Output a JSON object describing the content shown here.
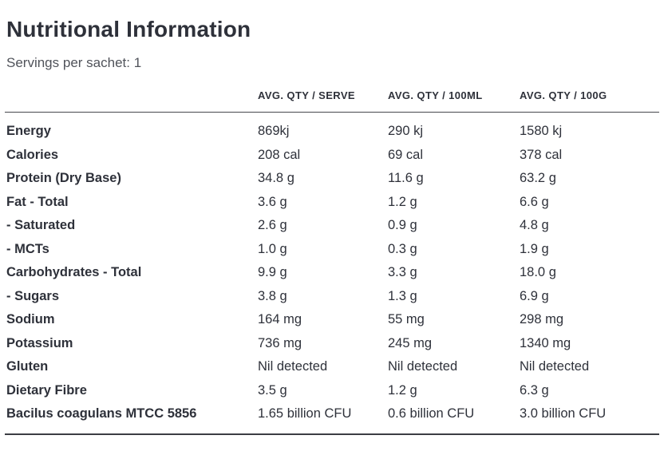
{
  "page": {
    "title": "Nutritional Information",
    "subtitle": "Servings per sachet: 1"
  },
  "table": {
    "columns": [
      "AVG. QTY / SERVE",
      "AVG. QTY / 100ML",
      "AVG. QTY / 100G"
    ],
    "rows": [
      {
        "label": "Energy",
        "values": [
          "869kj",
          "290 kj",
          "1580 kj"
        ]
      },
      {
        "label": "Calories",
        "values": [
          "208 cal",
          "69 cal",
          "378 cal"
        ]
      },
      {
        "label": "Protein (Dry Base)",
        "values": [
          "34.8 g",
          "11.6 g",
          "63.2 g"
        ]
      },
      {
        "label": "Fat - Total",
        "values": [
          "3.6 g",
          "1.2 g",
          "6.6 g"
        ]
      },
      {
        "label": "- Saturated",
        "values": [
          "2.6 g",
          "0.9 g",
          "4.8 g"
        ]
      },
      {
        "label": "- MCTs",
        "values": [
          "1.0 g",
          "0.3 g",
          "1.9 g"
        ]
      },
      {
        "label": "Carbohydrates - Total",
        "values": [
          "9.9 g",
          "3.3 g",
          "18.0 g"
        ]
      },
      {
        "label": "- Sugars",
        "values": [
          "3.8 g",
          "1.3 g",
          "6.9 g"
        ]
      },
      {
        "label": "Sodium",
        "values": [
          "164 mg",
          "55 mg",
          "298 mg"
        ]
      },
      {
        "label": "Potassium",
        "values": [
          "736 mg",
          "245 mg",
          "1340 mg"
        ]
      },
      {
        "label": "Gluten",
        "values": [
          "Nil detected",
          "Nil detected",
          "Nil detected"
        ]
      },
      {
        "label": "Dietary Fibre",
        "values": [
          "3.5 g",
          "1.2 g",
          "6.3 g"
        ]
      },
      {
        "label": "Bacilus coagulans MTCC 5856",
        "values": [
          "1.65 billion CFU",
          "0.6 billion CFU",
          "3.0 billion CFU"
        ]
      }
    ]
  },
  "colors": {
    "background": "#ffffff",
    "text_primary": "#2e313a",
    "text_secondary": "#50535a",
    "rule_header": "#46484d",
    "rule_bottom": "#3c3e43"
  }
}
